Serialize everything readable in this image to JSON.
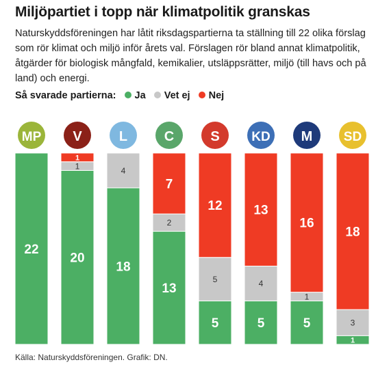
{
  "title": "Miljöpartiet i topp när klimatpolitik granskas",
  "description": "Naturskyddsföreningen har låtit riksdagspartierna ta ställning till 22 olika förslag som rör klimat och miljö inför årets val. Förslagen rör bland annat klimatpolitik, åtgärder för biologisk mångfald, kemikalier, utsläppsrätter, miljö (till havs och på land) och energi.",
  "legend": {
    "label": "Så svarade partierna:",
    "items": [
      {
        "name": "Ja",
        "color": "#4caf64"
      },
      {
        "name": "Vet ej",
        "color": "#c8c8c8"
      },
      {
        "name": "Nej",
        "color": "#ef3b24"
      }
    ]
  },
  "source": "Källa: Naturskyddsföreningen. Grafik: DN.",
  "chart_data": {
    "type": "bar",
    "stacked": true,
    "total": 22,
    "categories": [
      "MP",
      "V",
      "L",
      "C",
      "S",
      "KD",
      "M",
      "SD"
    ],
    "category_colors": [
      "#9bb53a",
      "#8b2118",
      "#7fb8e0",
      "#5aa66a",
      "#d33a2c",
      "#3d6fb6",
      "#1e3a7a",
      "#e8c02e"
    ],
    "series": [
      {
        "name": "Ja",
        "color": "#4caf64",
        "values": [
          22,
          20,
          18,
          13,
          5,
          5,
          5,
          1
        ]
      },
      {
        "name": "Vet ej",
        "color": "#c8c8c8",
        "values": [
          0,
          1,
          4,
          2,
          5,
          4,
          1,
          3
        ]
      },
      {
        "name": "Nej",
        "color": "#ef3b24",
        "values": [
          0,
          1,
          0,
          7,
          12,
          13,
          16,
          18
        ]
      }
    ]
  }
}
